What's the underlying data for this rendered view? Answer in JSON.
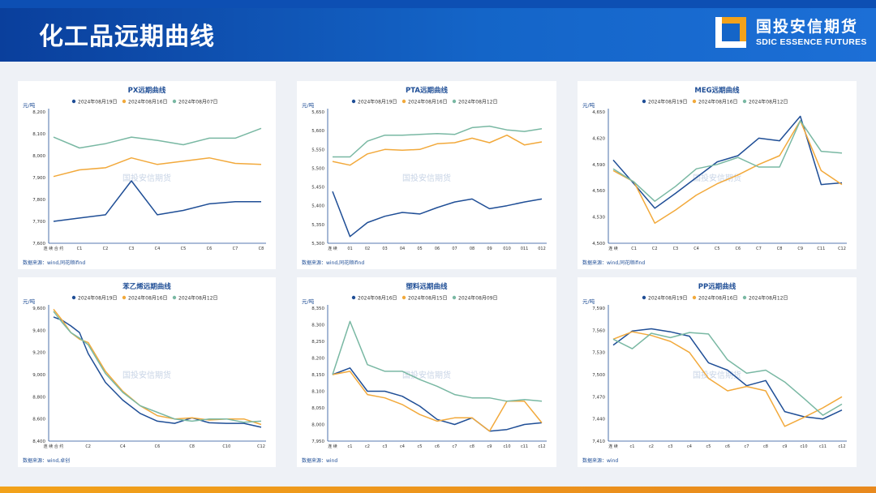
{
  "header": {
    "title": "化工品远期曲线"
  },
  "logo": {
    "cn": "国投安信期货",
    "en": "SDIC ESSENCE FUTURES"
  },
  "watermark": "国投安信期货",
  "colors": {
    "blue": "#1f4e96",
    "orange": "#f2a93b",
    "green": "#79b8a3",
    "axis": "#1f4e96"
  },
  "chart_data": [
    {
      "type": "line",
      "title": "PX远期曲线",
      "ylabel": "元/吨",
      "ylim": [
        7600,
        8200
      ],
      "yticks": [
        "7,600",
        "7,700",
        "7,800",
        "7,900",
        "8,000",
        "8,100",
        "8,200"
      ],
      "categories": [
        "连 续 合 约",
        "C1",
        "C2",
        "C3",
        "C4",
        "C5",
        "C6",
        "C7",
        "C8"
      ],
      "series": [
        {
          "name": "2024年08月19日",
          "color": "#1f4e96",
          "values": [
            7700,
            7715,
            7730,
            7885,
            7730,
            7750,
            7780,
            7790,
            7790
          ]
        },
        {
          "name": "2024年08月16日",
          "color": "#f2a93b",
          "values": [
            7905,
            7935,
            7945,
            7990,
            7960,
            7975,
            7990,
            7965,
            7960
          ]
        },
        {
          "name": "2024年08月07日",
          "color": "#79b8a3",
          "values": [
            8085,
            8035,
            8055,
            8085,
            8070,
            8050,
            8080,
            8080,
            8125
          ]
        }
      ],
      "source": "数据来源：wind,同花顺ifind"
    },
    {
      "type": "line",
      "title": "PTA远期曲线",
      "ylabel": "元/吨",
      "ylim": [
        5300,
        5650
      ],
      "yticks": [
        "5,300",
        "5,350",
        "5,400",
        "5,450",
        "5,500",
        "5,550",
        "5,600",
        "5,650"
      ],
      "categories": [
        "连 续",
        "01",
        "02",
        "03",
        "04",
        "05",
        "06",
        "07",
        "08",
        "09",
        "010",
        "011",
        "012"
      ],
      "series": [
        {
          "name": "2024年08月19日",
          "color": "#1f4e96",
          "values": [
            5438,
            5318,
            5355,
            5372,
            5382,
            5378,
            5395,
            5410,
            5418,
            5392,
            5400,
            5410,
            5418
          ]
        },
        {
          "name": "2024年08月16日",
          "color": "#f2a93b",
          "values": [
            5518,
            5508,
            5538,
            5550,
            5548,
            5550,
            5565,
            5568,
            5580,
            5568,
            5588,
            5562,
            5570
          ]
        },
        {
          "name": "2024年08月12日",
          "color": "#79b8a3",
          "values": [
            5530,
            5530,
            5572,
            5588,
            5588,
            5590,
            5592,
            5590,
            5608,
            5612,
            5602,
            5598,
            5605
          ]
        }
      ],
      "source": "数据来源：wind,同花顺ifind"
    },
    {
      "type": "line",
      "title": "MEG远期曲线",
      "ylabel": "元/吨",
      "ylim": [
        4500,
        4650
      ],
      "yticks": [
        "4,500",
        "4,530",
        "4,560",
        "4,590",
        "4,620",
        "4,650"
      ],
      "categories": [
        "连 续",
        "C1",
        "C2",
        "C3",
        "C4",
        "C5",
        "C6",
        "C7",
        "C8",
        "C9",
        "C11",
        "C12"
      ],
      "series": [
        {
          "name": "2024年08月19日",
          "color": "#1f4e96",
          "values": [
            4595,
            4568,
            4540,
            4557,
            4575,
            4593,
            4600,
            4620,
            4617,
            4645,
            4567,
            4569
          ]
        },
        {
          "name": "2024年08月16日",
          "color": "#f2a93b",
          "values": [
            4583,
            4570,
            4523,
            4538,
            4555,
            4568,
            4578,
            4590,
            4600,
            4640,
            4583,
            4567
          ]
        },
        {
          "name": "2024年08月12日",
          "color": "#79b8a3",
          "values": [
            4585,
            4570,
            4548,
            4565,
            4585,
            4590,
            4598,
            4587,
            4587,
            4640,
            4605,
            4603
          ]
        }
      ],
      "source": "数据来源：wind,同花顺ifind"
    },
    {
      "type": "line",
      "title": "苯乙烯远期曲线",
      "ylabel": "元/吨",
      "ylim": [
        8400,
        9600
      ],
      "yticks": [
        "8,400",
        "8,600",
        "8,800",
        "9,000",
        "9,200",
        "9,400",
        "9,600"
      ],
      "categories": [
        "连 续 合 约",
        "C2",
        "C4",
        "C6",
        "C8",
        "C10",
        "C12"
      ],
      "category_index": [
        0,
        2,
        4,
        6,
        8,
        10,
        12
      ],
      "x": [
        0,
        0.5,
        1,
        1.5,
        2,
        3,
        4,
        5,
        6,
        7,
        8,
        9,
        10,
        11,
        12
      ],
      "series": [
        {
          "name": "2024年08月19日",
          "color": "#1f4e96",
          "values": [
            9520,
            9490,
            9440,
            9380,
            9190,
            8930,
            8770,
            8650,
            8580,
            8560,
            8610,
            8565,
            8560,
            8560,
            8525
          ]
        },
        {
          "name": "2024年08月16日",
          "color": "#f2a93b",
          "values": [
            9590,
            9490,
            9380,
            9320,
            9290,
            9030,
            8850,
            8720,
            8630,
            8600,
            8610,
            8590,
            8600,
            8600,
            8550
          ]
        },
        {
          "name": "2024年08月12日",
          "color": "#79b8a3",
          "values": [
            9570,
            9470,
            9380,
            9330,
            9270,
            9010,
            8840,
            8720,
            8660,
            8600,
            8580,
            8600,
            8600,
            8570,
            8580
          ]
        }
      ],
      "source": "数据来源：wind,卓创"
    },
    {
      "type": "line",
      "title": "塑料远期曲线",
      "ylabel": "元/吨",
      "ylim": [
        7950,
        8350
      ],
      "yticks": [
        "7,950",
        "8,000",
        "8,050",
        "8,100",
        "8,150",
        "8,200",
        "8,250",
        "8,300",
        "8,350"
      ],
      "categories": [
        "连 续",
        "c1",
        "c2",
        "c3",
        "c4",
        "c5",
        "c6",
        "c7",
        "c8",
        "c9",
        "c10",
        "c11",
        "c12"
      ],
      "series": [
        {
          "name": "2024年08月16日",
          "color": "#1f4e96",
          "values": [
            8150,
            8170,
            8100,
            8100,
            8085,
            8055,
            8015,
            8000,
            8020,
            7980,
            7985,
            8000,
            8005
          ]
        },
        {
          "name": "2024年08月15日",
          "color": "#f2a93b",
          "values": [
            8150,
            8160,
            8090,
            8080,
            8060,
            8030,
            8010,
            8020,
            8020,
            7980,
            8070,
            8070,
            8005
          ]
        },
        {
          "name": "2024年08月09日",
          "color": "#79b8a3",
          "values": [
            8150,
            8310,
            8180,
            8160,
            8160,
            8135,
            8115,
            8090,
            8080,
            8080,
            8070,
            8075,
            8070
          ]
        }
      ],
      "source": "数据来源：wind"
    },
    {
      "type": "line",
      "title": "PP远期曲线",
      "ylabel": "元/吨",
      "ylim": [
        7410,
        7590
      ],
      "yticks": [
        "7,410",
        "7,440",
        "7,470",
        "7,500",
        "7,530",
        "7,560",
        "7,590"
      ],
      "categories": [
        "连 续",
        "c1",
        "c2",
        "c3",
        "c4",
        "c5",
        "c6",
        "c7",
        "c8",
        "c9",
        "c10",
        "c11",
        "c12"
      ],
      "series": [
        {
          "name": "2024年08月19日",
          "color": "#1f4e96",
          "values": [
            7540,
            7559,
            7562,
            7558,
            7552,
            7516,
            7506,
            7485,
            7492,
            7450,
            7443,
            7440,
            7452
          ]
        },
        {
          "name": "2024年08月16日",
          "color": "#f2a93b",
          "values": [
            7548,
            7558,
            7553,
            7545,
            7530,
            7495,
            7478,
            7484,
            7478,
            7430,
            7442,
            7455,
            7470
          ]
        },
        {
          "name": "2024年08月12日",
          "color": "#79b8a3",
          "values": [
            7548,
            7535,
            7556,
            7550,
            7557,
            7555,
            7520,
            7502,
            7506,
            7490,
            7468,
            7445,
            7460
          ]
        }
      ],
      "source": "数据来源：wind"
    }
  ]
}
